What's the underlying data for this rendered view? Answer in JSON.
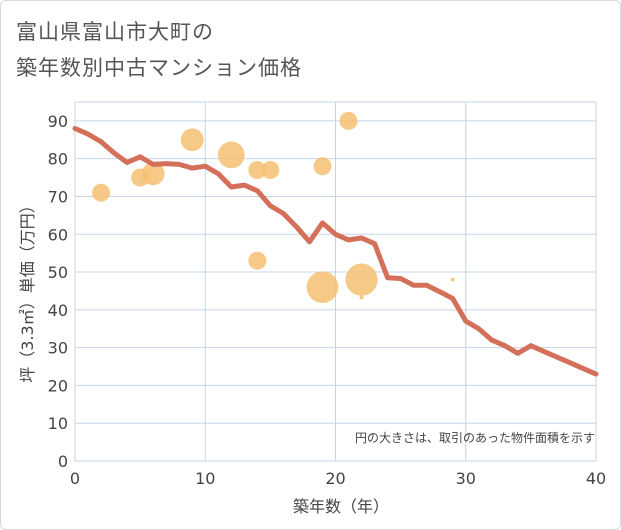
{
  "title_line1": "富山県富山市大町の",
  "title_line2": "築年数別中古マンション価格",
  "chart_data": {
    "type": "scatter",
    "title": "富山県富山市大町の築年数別中古マンション価格",
    "xlabel": "築年数（年）",
    "ylabel": "坪（3.3㎡）単価（万円）",
    "xlim": [
      0,
      40
    ],
    "ylim": [
      0,
      95
    ],
    "xticks": [
      0,
      10,
      20,
      30,
      40
    ],
    "yticks": [
      0,
      10,
      20,
      30,
      40,
      50,
      60,
      70,
      80,
      90
    ],
    "grid": true,
    "note": "円の大きさは、取引のあった物件面積を示す",
    "colors": {
      "line": "#d4705a",
      "bubble": "#f5c072",
      "grid": "#c5d5e8"
    },
    "bubbles": [
      {
        "x": 2,
        "y": 71,
        "size": 1
      },
      {
        "x": 5,
        "y": 75,
        "size": 1
      },
      {
        "x": 6,
        "y": 76,
        "size": 1.6
      },
      {
        "x": 9,
        "y": 85,
        "size": 1.6
      },
      {
        "x": 12,
        "y": 81,
        "size": 2.2
      },
      {
        "x": 14,
        "y": 77,
        "size": 1
      },
      {
        "x": 15,
        "y": 77,
        "size": 1
      },
      {
        "x": 14,
        "y": 53,
        "size": 1
      },
      {
        "x": 19,
        "y": 78,
        "size": 1
      },
      {
        "x": 21,
        "y": 90,
        "size": 1
      },
      {
        "x": 19,
        "y": 46,
        "size": 3.1
      },
      {
        "x": 22,
        "y": 48,
        "size": 3.2
      },
      {
        "x": 22,
        "y": 43.3,
        "size": 0.05
      },
      {
        "x": 29,
        "y": 48,
        "size": 0.05
      }
    ],
    "series": [
      {
        "name": "trend",
        "x": [
          0,
          1,
          2,
          3,
          4,
          5,
          6,
          7,
          8,
          9,
          10,
          11,
          12,
          13,
          14,
          15,
          16,
          17,
          18,
          19,
          20,
          21,
          22,
          23,
          24,
          25,
          26,
          27,
          28,
          29,
          30,
          31,
          32,
          33,
          34,
          35,
          36,
          37,
          38,
          39,
          40
        ],
        "y": [
          88,
          86.5,
          84.5,
          81.5,
          79,
          80.5,
          78.5,
          78.7,
          78.5,
          77.5,
          78,
          76,
          72.5,
          73,
          71.5,
          67.5,
          65.5,
          62,
          58,
          63,
          60,
          58.5,
          59,
          57.5,
          48.5,
          48.3,
          46.5,
          46.5,
          44.8,
          43,
          37,
          35,
          32,
          30.5,
          28.5,
          30.5,
          29,
          27.5,
          26,
          24.5,
          23
        ]
      }
    ]
  }
}
